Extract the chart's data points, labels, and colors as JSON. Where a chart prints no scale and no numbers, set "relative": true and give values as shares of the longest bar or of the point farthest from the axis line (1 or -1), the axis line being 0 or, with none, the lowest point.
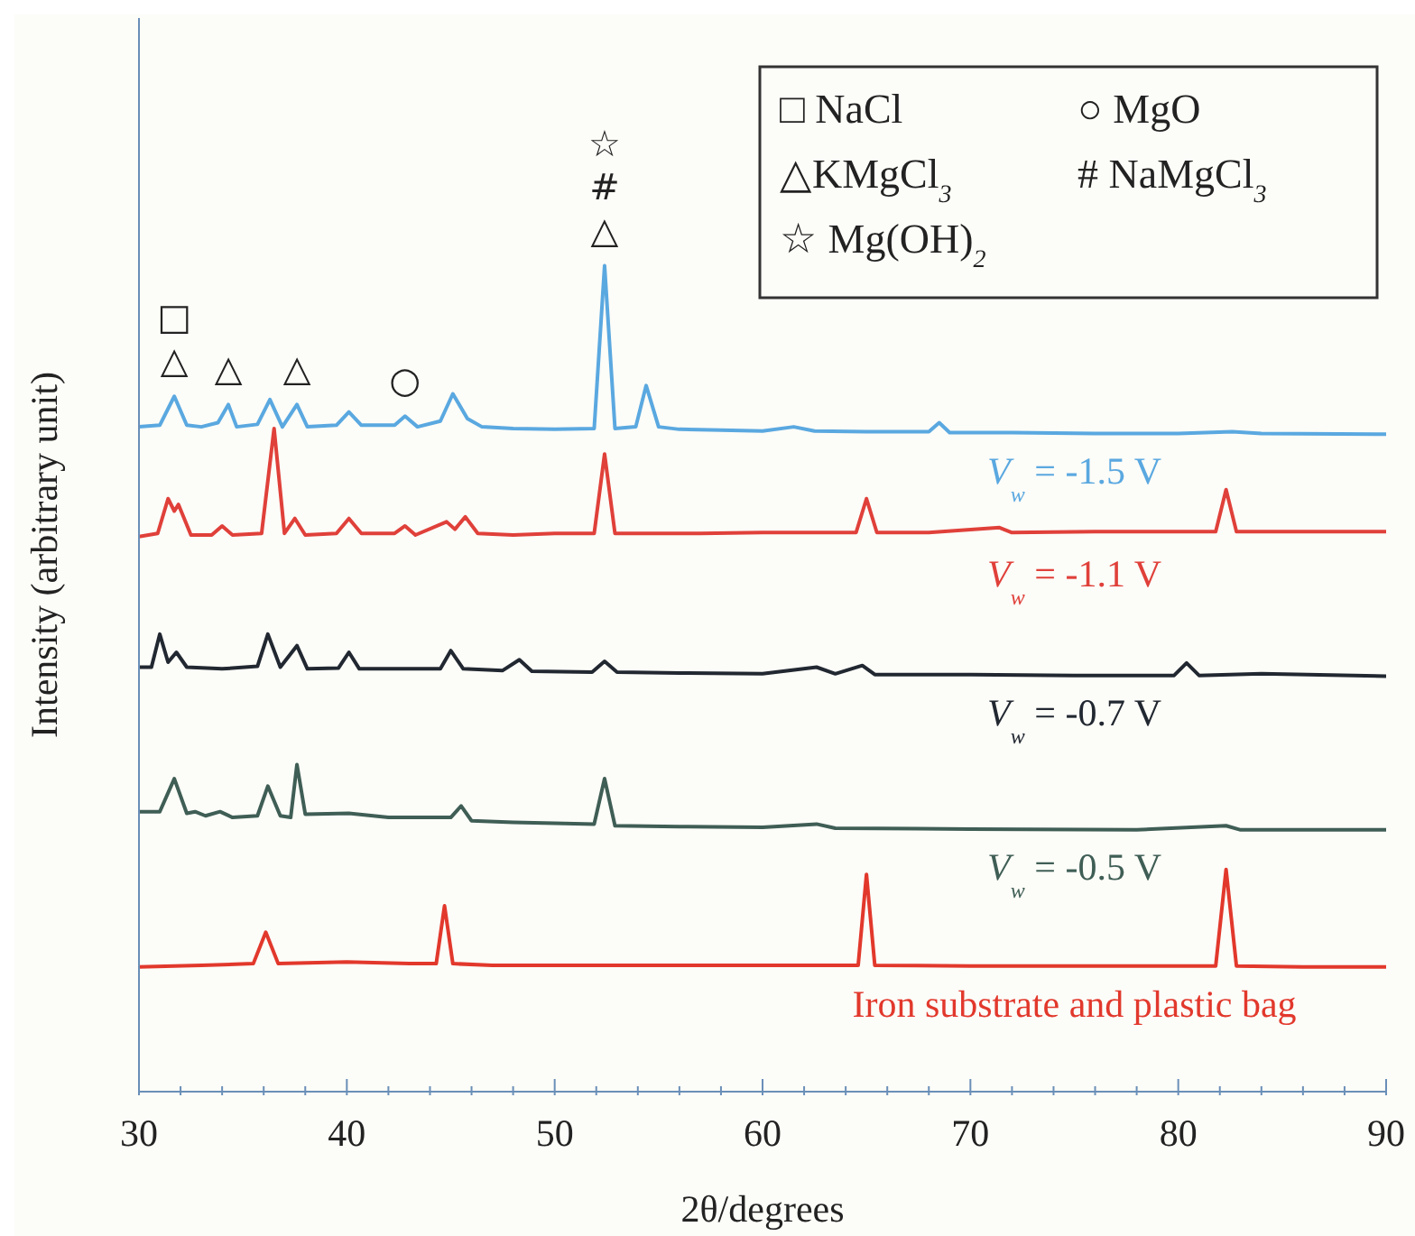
{
  "chart_data": {
    "type": "line",
    "relative": true,
    "xlabel": "2θ/degrees",
    "ylabel": "Intensity (arbitrary unit)",
    "xlim": [
      30,
      90
    ],
    "xticks": [
      30,
      {
        "value": 32,
        "label": null
      },
      {
        "value": 34,
        "label": null
      },
      {
        "value": 36,
        "label": null
      },
      {
        "value": 38,
        "label": null
      },
      40,
      {
        "value": 42,
        "label": null
      },
      {
        "value": 44,
        "label": null
      },
      {
        "value": 46,
        "label": null
      },
      {
        "value": 48,
        "label": null
      },
      50,
      {
        "value": 52,
        "label": null
      },
      {
        "value": 54,
        "label": null
      },
      {
        "value": 56,
        "label": null
      },
      {
        "value": 58,
        "label": null
      },
      60,
      {
        "value": 62,
        "label": null
      },
      {
        "value": 64,
        "label": null
      },
      {
        "value": 66,
        "label": null
      },
      {
        "value": 68,
        "label": null
      },
      70,
      {
        "value": 72,
        "label": null
      },
      {
        "value": 74,
        "label": null
      },
      {
        "value": 76,
        "label": null
      },
      {
        "value": 78,
        "label": null
      },
      80,
      {
        "value": 82,
        "label": null
      },
      {
        "value": 84,
        "label": null
      },
      {
        "value": 86,
        "label": null
      },
      {
        "value": 88,
        "label": null
      },
      90
    ],
    "series": [
      {
        "name": "V$_{w}$ = -1.5 V",
        "color": "#5aa8e0",
        "x": [
          30,
          31,
          31.7,
          32.3,
          33,
          33.8,
          34.3,
          34.7,
          35.7,
          36.3,
          36.9,
          37.6,
          38.1,
          39.5,
          40.1,
          40.7,
          42.3,
          42.8,
          43.4,
          44.5,
          45.1,
          45.8,
          46.5,
          48,
          50,
          51.9,
          52.4,
          52.9,
          53.9,
          54.4,
          55,
          56,
          58,
          60,
          61.5,
          62.5,
          65,
          68,
          68.5,
          69,
          72,
          76,
          80,
          82.6,
          84,
          90
        ],
        "values": [
          0.805,
          0.807,
          0.842,
          0.807,
          0.805,
          0.81,
          0.832,
          0.805,
          0.808,
          0.838,
          0.805,
          0.832,
          0.805,
          0.807,
          0.823,
          0.807,
          0.807,
          0.818,
          0.805,
          0.812,
          0.845,
          0.815,
          0.805,
          0.803,
          0.802,
          0.803,
          1.0,
          0.803,
          0.805,
          0.855,
          0.805,
          0.802,
          0.801,
          0.8,
          0.805,
          0.8,
          0.799,
          0.799,
          0.81,
          0.798,
          0.798,
          0.797,
          0.797,
          0.799,
          0.797,
          0.796
        ]
      },
      {
        "name": "V$_{w}$ = -1.1 V",
        "color": "#e0403a",
        "x": [
          30,
          30.9,
          31.4,
          31.7,
          31.9,
          32.5,
          33.5,
          34,
          34.5,
          35.9,
          36.5,
          37,
          37.5,
          38,
          39.5,
          40.1,
          40.7,
          42.3,
          42.8,
          43.3,
          44.8,
          45.2,
          45.7,
          46.3,
          48,
          50,
          51.9,
          52.4,
          52.9,
          54,
          57,
          60,
          63,
          64.5,
          65,
          65.5,
          68,
          71.4,
          72,
          76,
          80,
          81.8,
          82.3,
          82.8,
          85,
          90
        ],
        "values": [
          0.672,
          0.676,
          0.718,
          0.703,
          0.711,
          0.674,
          0.674,
          0.685,
          0.674,
          0.676,
          0.803,
          0.676,
          0.694,
          0.674,
          0.676,
          0.694,
          0.676,
          0.676,
          0.685,
          0.674,
          0.69,
          0.681,
          0.696,
          0.676,
          0.674,
          0.676,
          0.676,
          0.772,
          0.676,
          0.676,
          0.676,
          0.677,
          0.677,
          0.677,
          0.718,
          0.677,
          0.677,
          0.683,
          0.677,
          0.678,
          0.678,
          0.678,
          0.729,
          0.678,
          0.678,
          0.678
        ]
      },
      {
        "name": "V$_{w}$ = -0.7 V",
        "color": "#222831",
        "x": [
          30,
          30.6,
          31,
          31.4,
          31.8,
          32.3,
          34,
          35.7,
          36.2,
          36.8,
          37.6,
          38.1,
          39.6,
          40.1,
          40.6,
          42.5,
          44.5,
          45,
          45.6,
          47.5,
          48.3,
          48.9,
          51.8,
          52.4,
          53,
          56,
          60,
          62.6,
          63.5,
          64.8,
          65.4,
          70,
          75,
          79.8,
          80.4,
          81,
          84,
          90
        ],
        "values": [
          0.514,
          0.514,
          0.554,
          0.52,
          0.532,
          0.514,
          0.512,
          0.515,
          0.554,
          0.514,
          0.54,
          0.512,
          0.513,
          0.532,
          0.512,
          0.512,
          0.512,
          0.534,
          0.512,
          0.51,
          0.523,
          0.509,
          0.508,
          0.521,
          0.508,
          0.507,
          0.506,
          0.514,
          0.506,
          0.516,
          0.505,
          0.505,
          0.504,
          0.504,
          0.519,
          0.504,
          0.506,
          0.503
        ]
      },
      {
        "name": "V$_{w}$ = -0.5 V",
        "color": "#3f5e55",
        "x": [
          30,
          31,
          31.7,
          32.3,
          32.7,
          33.2,
          33.9,
          34.5,
          35.7,
          36.2,
          36.8,
          37.3,
          37.6,
          38,
          40.1,
          42,
          45,
          45.5,
          46,
          48,
          50,
          51.9,
          52.4,
          52.9,
          56,
          60,
          62.6,
          63.5,
          70,
          78,
          82.3,
          83,
          90
        ],
        "values": [
          0.339,
          0.339,
          0.379,
          0.337,
          0.339,
          0.334,
          0.339,
          0.332,
          0.334,
          0.37,
          0.334,
          0.332,
          0.396,
          0.336,
          0.337,
          0.332,
          0.332,
          0.346,
          0.328,
          0.326,
          0.325,
          0.324,
          0.379,
          0.322,
          0.321,
          0.32,
          0.324,
          0.319,
          0.318,
          0.317,
          0.322,
          0.317,
          0.317
        ]
      },
      {
        "name": "Iron substrate and plastic bag",
        "color": "#e2382c",
        "x": [
          30,
          33,
          35.5,
          36.1,
          36.7,
          40,
          43,
          44.3,
          44.7,
          45.1,
          47,
          55,
          60,
          64.6,
          65,
          65.4,
          70,
          75,
          81.8,
          82.3,
          82.8,
          86,
          90
        ],
        "values": [
          0.151,
          0.153,
          0.155,
          0.193,
          0.155,
          0.157,
          0.155,
          0.155,
          0.225,
          0.155,
          0.153,
          0.153,
          0.153,
          0.153,
          0.263,
          0.153,
          0.152,
          0.152,
          0.152,
          0.269,
          0.152,
          0.151,
          0.151
        ]
      }
    ],
    "annotations": [
      {
        "text": "□△",
        "x": 31.7,
        "y": 0.842
      },
      {
        "text": "△",
        "x": 34.3,
        "y": 0.832
      },
      {
        "text": "△",
        "x": 37.6,
        "y": 0.832
      },
      {
        "text": "○",
        "x": 42.8,
        "y": 0.818
      },
      {
        "text": "☆#△",
        "x": 52.4,
        "y": 1.0
      },
      "□ NaCl",
      "○ MgO",
      "△KMgCl$_{3}$",
      "# NaMgCl$_{3}$",
      "☆ Mg(OH)$_{2}$"
    ]
  }
}
